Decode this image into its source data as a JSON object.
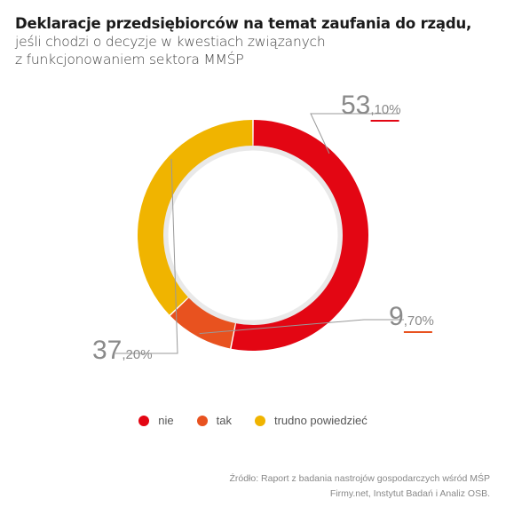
{
  "title": "Deklaracje przedsiębiorców na temat zaufania do rządu,",
  "subtitle_line1": "jeśli chodzi o decyzje w kwestiach związanych",
  "subtitle_line2": "z funkcjonowaniem sektora MMŚP",
  "chart_data": {
    "type": "pie",
    "variant": "donut",
    "categories": [
      "nie",
      "tak",
      "trudno powiedzieć"
    ],
    "values": [
      53.1,
      9.7,
      37.2
    ],
    "labels": [
      {
        "main": "53",
        "decimal": ",10%"
      },
      {
        "main": "9",
        "decimal": ",70%"
      },
      {
        "main": "37",
        "decimal": ",20%"
      }
    ],
    "colors": [
      "#e30613",
      "#e8521f",
      "#f0b400"
    ],
    "legend_position": "bottom"
  },
  "source_line1": "Źródło: Raport z badania nastrojów gospodarczych wśród MŚP",
  "source_line2": "Firmy.net, Instytut Badań i Analiz OSB."
}
